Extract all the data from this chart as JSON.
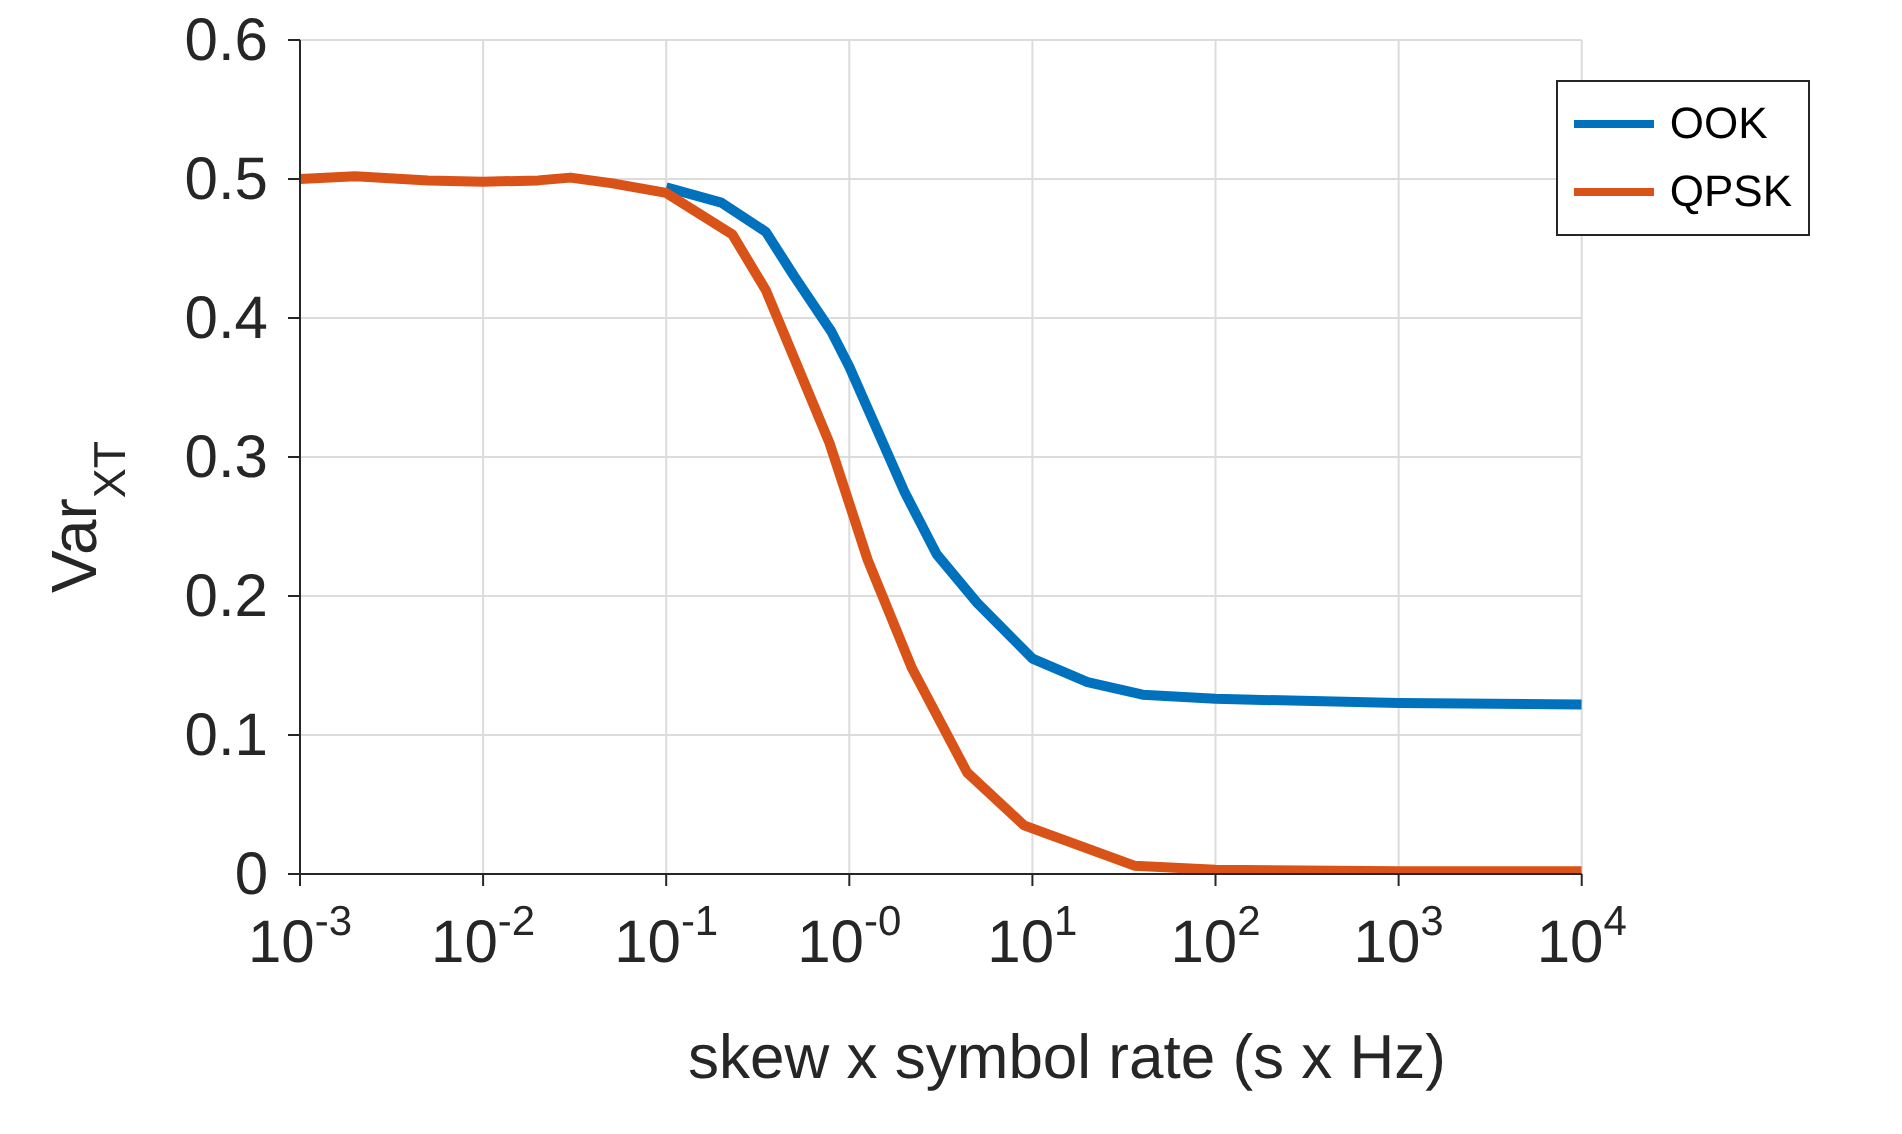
{
  "chart_data": {
    "type": "line",
    "xlabel": "skew x symbol rate (s x Hz)",
    "ylabel": "Var$_{XT}$",
    "log": "x",
    "grid": true,
    "legend": "top right",
    "xlim": [
      0.001,
      10000
    ],
    "ylim": [
      0,
      0.6
    ],
    "xticks": [
      {
        "value": 0.001,
        "label": "10$^{-3}$"
      },
      {
        "value": 0.01,
        "label": "10$^{-2}$"
      },
      {
        "value": 0.1,
        "label": "10$^{-1}$"
      },
      {
        "value": 1,
        "label": "10$^{-0}$"
      },
      {
        "value": 10,
        "label": "10$^{1}$"
      },
      {
        "value": 100,
        "label": "10$^{2}$"
      },
      {
        "value": 1000,
        "label": "10$^{3}$"
      },
      {
        "value": 10000,
        "label": "10$^{4}$"
      }
    ],
    "yticks": [
      0,
      0.1,
      0.2,
      0.3,
      0.4,
      0.5,
      0.6
    ],
    "series": [
      {
        "name": "OOK",
        "color": "#0072bd",
        "x": [
          0.1,
          0.2,
          0.35,
          0.5,
          0.8,
          1,
          2,
          3,
          5,
          10,
          20,
          40,
          100,
          1000,
          10000
        ],
        "values": [
          0.494,
          0.483,
          0.462,
          0.43,
          0.39,
          0.365,
          0.275,
          0.23,
          0.195,
          0.155,
          0.138,
          0.129,
          0.126,
          0.123,
          0.122
        ]
      },
      {
        "name": "QPSK",
        "color": "#d95319",
        "x": [
          0.001,
          0.002,
          0.005,
          0.01,
          0.02,
          0.03,
          0.05,
          0.1,
          0.23,
          0.35,
          0.78,
          1.26,
          2.2,
          4.4,
          9,
          36,
          100,
          1000,
          10000
        ],
        "values": [
          0.5,
          0.502,
          0.499,
          0.498,
          0.499,
          0.501,
          0.497,
          0.49,
          0.46,
          0.42,
          0.31,
          0.226,
          0.148,
          0.073,
          0.035,
          0.006,
          0.003,
          0.002,
          0.002
        ]
      }
    ]
  }
}
